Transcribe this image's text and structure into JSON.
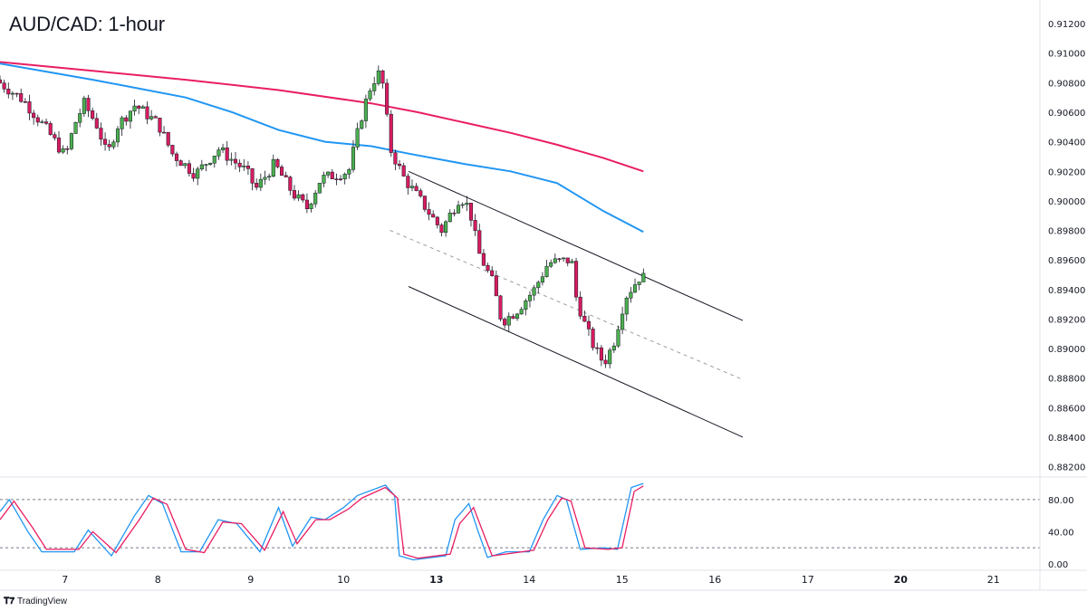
{
  "header": {
    "title": "AUD/CAD: 1-hour"
  },
  "brand": {
    "label": "TradingView",
    "logo_icon": "tradingview-logo-icon"
  },
  "colors": {
    "bull": "#4caf50",
    "bear": "#d81b60",
    "ma_slow": "#e91e63",
    "ma_fast": "#2196f3",
    "stoch_k": "#2196f3",
    "stoch_d": "#e91e63",
    "channel": "#131722",
    "midline": "#9e9e9e"
  },
  "chart_data": [
    {
      "type": "candlestick",
      "title": "AUD/CAD: 1-hour",
      "ylim": [
        0.8813,
        0.9136
      ],
      "y_ticks": [
        "0.91200",
        "0.91000",
        "0.90800",
        "0.90600",
        "0.90400",
        "0.90200",
        "0.90000",
        "0.89800",
        "0.89600",
        "0.89400",
        "0.89200",
        "0.89000",
        "0.88800",
        "0.88600",
        "0.88400",
        "0.88200"
      ],
      "x_ticks": [
        {
          "label": "7",
          "x": 0.7
        },
        {
          "label": "8",
          "x": 1.7
        },
        {
          "label": "9",
          "x": 2.7
        },
        {
          "label": "10",
          "x": 3.7
        },
        {
          "label": "13",
          "x": 4.7,
          "bold": true
        },
        {
          "label": "14",
          "x": 5.7
        },
        {
          "label": "15",
          "x": 6.7
        },
        {
          "label": "16",
          "x": 7.7
        },
        {
          "label": "17",
          "x": 8.7
        },
        {
          "label": "20",
          "x": 9.7,
          "bold": true
        },
        {
          "label": "21",
          "x": 10.7
        }
      ],
      "xlim": [
        0,
        11.2
      ],
      "series": [
        {
          "kind": "candles",
          "anchors": [
            [
              0,
              0.9082
            ],
            [
              0.3,
              0.9068
            ],
            [
              0.55,
              0.9048
            ],
            [
              0.75,
              0.903
            ],
            [
              0.85,
              0.9052
            ],
            [
              0.95,
              0.9066
            ],
            [
              1.1,
              0.905
            ],
            [
              1.2,
              0.903
            ],
            [
              1.3,
              0.905
            ],
            [
              1.5,
              0.9065
            ],
            [
              1.75,
              0.9052
            ],
            [
              1.9,
              0.9032
            ],
            [
              2.15,
              0.9018
            ],
            [
              2.4,
              0.9035
            ],
            [
              2.7,
              0.902
            ],
            [
              2.8,
              0.9008
            ],
            [
              3.0,
              0.9025
            ],
            [
              3.2,
              0.9005
            ],
            [
              3.35,
              0.8995
            ],
            [
              3.5,
              0.9015
            ],
            [
              3.8,
              0.902
            ],
            [
              3.95,
              0.906
            ],
            [
              4.05,
              0.908
            ],
            [
              4.15,
              0.9088
            ],
            [
              4.25,
              0.9035
            ],
            [
              4.4,
              0.9015
            ],
            [
              4.6,
              0.8998
            ],
            [
              4.8,
              0.898
            ],
            [
              5.0,
              0.9003
            ],
            [
              5.1,
              0.8995
            ],
            [
              5.2,
              0.8965
            ],
            [
              5.35,
              0.8945
            ],
            [
              5.45,
              0.8918
            ],
            [
              5.6,
              0.8925
            ],
            [
              5.8,
              0.894
            ],
            [
              5.95,
              0.8958
            ],
            [
              6.2,
              0.896
            ],
            [
              6.25,
              0.8935
            ],
            [
              6.35,
              0.8915
            ],
            [
              6.45,
              0.89
            ],
            [
              6.55,
              0.889
            ],
            [
              6.65,
              0.8903
            ],
            [
              6.78,
              0.8935
            ],
            [
              6.93,
              0.8948
            ]
          ],
          "count": 154
        },
        {
          "kind": "line",
          "name": "",
          "color_key": "ma_slow",
          "points": [
            [
              0,
              0.9094
            ],
            [
              1,
              0.9088
            ],
            [
              2,
              0.9082
            ],
            [
              3,
              0.9075
            ],
            [
              4,
              0.9066
            ],
            [
              4.5,
              0.906
            ],
            [
              5,
              0.9053
            ],
            [
              5.5,
              0.9046
            ],
            [
              6,
              0.9038
            ],
            [
              6.5,
              0.9029
            ],
            [
              6.93,
              0.902
            ]
          ]
        },
        {
          "kind": "line",
          "name": "",
          "color_key": "ma_fast",
          "points": [
            [
              0,
              0.9093
            ],
            [
              1,
              0.9082
            ],
            [
              1.5,
              0.9076
            ],
            [
              2,
              0.907
            ],
            [
              2.5,
              0.906
            ],
            [
              3,
              0.9048
            ],
            [
              3.5,
              0.904
            ],
            [
              4,
              0.9037
            ],
            [
              4.4,
              0.9032
            ],
            [
              5,
              0.9025
            ],
            [
              5.5,
              0.902
            ],
            [
              6,
              0.9012
            ],
            [
              6.5,
              0.8993
            ],
            [
              6.93,
              0.8979
            ]
          ]
        },
        {
          "kind": "channel",
          "name": "",
          "color_key": "channel",
          "points": [
            [
              4.4,
              0.902
            ],
            [
              8.0,
              0.8919
            ]
          ]
        },
        {
          "kind": "channel",
          "name": "",
          "color_key": "midline",
          "dashed": true,
          "points": [
            [
              4.2,
              0.898
            ],
            [
              8.0,
              0.8879
            ]
          ]
        },
        {
          "kind": "channel",
          "name": "",
          "color_key": "channel",
          "points": [
            [
              4.4,
              0.8942
            ],
            [
              8.0,
              0.884
            ]
          ]
        }
      ]
    },
    {
      "type": "line",
      "ylim": [
        -8,
        108
      ],
      "y_ticks": [
        "80.00",
        "40.00",
        "0.00"
      ],
      "levels": [
        80,
        20
      ],
      "series": [
        {
          "name": "",
          "color_key": "stoch_k",
          "points": [
            [
              0,
              65
            ],
            [
              0.1,
              80
            ],
            [
              0.3,
              40
            ],
            [
              0.45,
              15
            ],
            [
              0.8,
              15
            ],
            [
              0.95,
              42
            ],
            [
              1.2,
              10
            ],
            [
              1.45,
              60
            ],
            [
              1.6,
              85
            ],
            [
              1.75,
              75
            ],
            [
              1.95,
              15
            ],
            [
              2.15,
              15
            ],
            [
              2.35,
              55
            ],
            [
              2.55,
              50
            ],
            [
              2.8,
              15
            ],
            [
              3.0,
              70
            ],
            [
              3.15,
              22
            ],
            [
              3.35,
              58
            ],
            [
              3.5,
              55
            ],
            [
              3.7,
              70
            ],
            [
              3.85,
              85
            ],
            [
              4.15,
              98
            ],
            [
              4.25,
              85
            ],
            [
              4.3,
              10
            ],
            [
              4.45,
              5
            ],
            [
              4.8,
              10
            ],
            [
              4.9,
              55
            ],
            [
              5.05,
              75
            ],
            [
              5.15,
              40
            ],
            [
              5.25,
              8
            ],
            [
              5.45,
              15
            ],
            [
              5.7,
              15
            ],
            [
              5.85,
              55
            ],
            [
              6.0,
              85
            ],
            [
              6.1,
              80
            ],
            [
              6.25,
              18
            ],
            [
              6.5,
              20
            ],
            [
              6.65,
              18
            ],
            [
              6.8,
              95
            ],
            [
              6.93,
              100
            ]
          ]
        },
        {
          "name": "",
          "color_key": "stoch_d",
          "points": [
            [
              0,
              55
            ],
            [
              0.15,
              78
            ],
            [
              0.35,
              45
            ],
            [
              0.5,
              18
            ],
            [
              0.85,
              18
            ],
            [
              1.0,
              40
            ],
            [
              1.25,
              14
            ],
            [
              1.5,
              55
            ],
            [
              1.65,
              82
            ],
            [
              1.8,
              74
            ],
            [
              2.0,
              18
            ],
            [
              2.2,
              14
            ],
            [
              2.4,
              52
            ],
            [
              2.6,
              50
            ],
            [
              2.85,
              17
            ],
            [
              3.05,
              65
            ],
            [
              3.2,
              25
            ],
            [
              3.4,
              55
            ],
            [
              3.55,
              55
            ],
            [
              3.75,
              68
            ],
            [
              3.9,
              82
            ],
            [
              4.15,
              95
            ],
            [
              4.28,
              82
            ],
            [
              4.35,
              12
            ],
            [
              4.5,
              7
            ],
            [
              4.85,
              12
            ],
            [
              4.95,
              50
            ],
            [
              5.1,
              70
            ],
            [
              5.2,
              40
            ],
            [
              5.3,
              10
            ],
            [
              5.5,
              13
            ],
            [
              5.75,
              17
            ],
            [
              5.9,
              55
            ],
            [
              6.05,
              82
            ],
            [
              6.15,
              78
            ],
            [
              6.3,
              20
            ],
            [
              6.55,
              18
            ],
            [
              6.7,
              20
            ],
            [
              6.83,
              90
            ],
            [
              6.93,
              97
            ]
          ]
        }
      ]
    }
  ]
}
